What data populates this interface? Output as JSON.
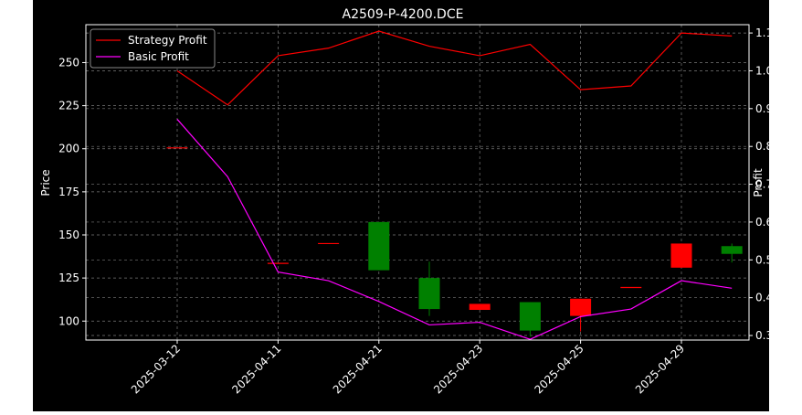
{
  "chart_data": {
    "type": "candlestick+line",
    "title": "A2509-P-4200.DCE",
    "ylabel_left": "Price",
    "ylabel_right": "Profit",
    "grid": true,
    "legend_position": "top-left",
    "x_ticks": [
      "2025-03-12",
      "2025-04-11",
      "2025-04-21",
      "2025-04-23",
      "2025-04-25",
      "2025-04-29"
    ],
    "x_tick_indices": [
      0,
      2,
      4,
      6,
      8,
      10
    ],
    "left_axis": {
      "ylim": [
        89,
        272
      ],
      "ticks": [
        100,
        125,
        150,
        175,
        200,
        225,
        250
      ]
    },
    "right_axis": {
      "ylim": [
        0.288,
        1.122
      ],
      "ticks": [
        0.3,
        0.4,
        0.5,
        0.6,
        0.7,
        0.8,
        0.9,
        1.0,
        1.1
      ]
    },
    "candles": [
      {
        "i": 0,
        "open": 200.5,
        "close": 200.5,
        "high": 200.5,
        "low": 200.5
      },
      {
        "i": 2,
        "open": 133.5,
        "close": 133.5,
        "high": 133.5,
        "low": 133.5
      },
      {
        "i": 3,
        "open": 145,
        "close": 145,
        "high": 145,
        "low": 145
      },
      {
        "i": 4,
        "open": 129.5,
        "close": 157.5,
        "high": 157.5,
        "low": 129.5
      },
      {
        "i": 5,
        "open": 107,
        "close": 125,
        "high": 134.5,
        "low": 103
      },
      {
        "i": 6,
        "open": 110,
        "close": 106.5,
        "high": 110,
        "low": 106.5
      },
      {
        "i": 7,
        "open": 94.5,
        "close": 111,
        "high": 111,
        "low": 91
      },
      {
        "i": 8,
        "open": 113,
        "close": 103,
        "high": 113,
        "low": 94
      },
      {
        "i": 9,
        "open": 119.5,
        "close": 119.5,
        "high": 119.5,
        "low": 119.5
      },
      {
        "i": 10,
        "open": 145,
        "close": 131,
        "high": 145,
        "low": 131
      },
      {
        "i": 11,
        "open": 139,
        "close": 143.5,
        "high": 145,
        "low": 134
      }
    ],
    "series": [
      {
        "name": "Strategy Profit",
        "color": "#ff0000",
        "axis": "right",
        "values": [
          1.0,
          0.91,
          1.04,
          1.06,
          1.105,
          1.065,
          1.04,
          1.07,
          0.95,
          0.96,
          1.1,
          1.092
        ]
      },
      {
        "name": "Basic Profit",
        "color": "#ff00ff",
        "axis": "right",
        "values": [
          0.872,
          0.72,
          0.468,
          0.445,
          0.39,
          0.328,
          0.335,
          0.29,
          0.35,
          0.37,
          0.445,
          0.425
        ]
      }
    ],
    "up_color": "#008000",
    "down_color": "#ff0000",
    "flat_color": "#ff0000"
  }
}
